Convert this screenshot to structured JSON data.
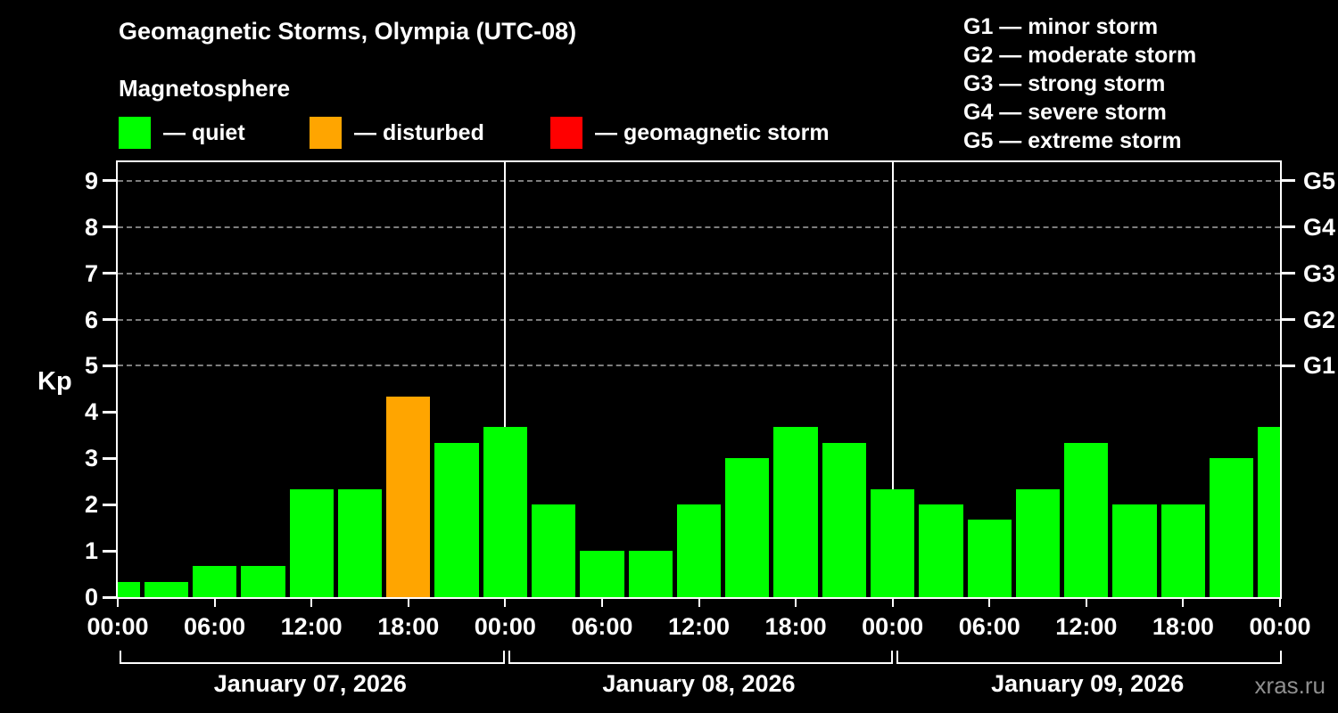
{
  "header": {
    "title": "Geomagnetic Storms, Olympia (UTC-08)",
    "subtitle": "Magnetosphere"
  },
  "legend": {
    "items": [
      {
        "label": "— quiet",
        "color": "#00ff00"
      },
      {
        "label": "— disturbed",
        "color": "#ffa500"
      },
      {
        "label": "— geomagnetic storm",
        "color": "#ff0000"
      }
    ]
  },
  "g_legend": {
    "items": [
      "G1 — minor storm",
      "G2 — moderate storm",
      "G3 — strong storm",
      "G4 — severe storm",
      "G5 — extreme storm"
    ]
  },
  "colors": {
    "quiet": "#00ff00",
    "disturbed": "#ffa500",
    "storm": "#ff0000",
    "background": "#000000",
    "text": "#ffffff",
    "grid": "#7d7d7d",
    "watermark": "#8f8f8f"
  },
  "footer": {
    "watermark": "xras.ru"
  },
  "chart_data": {
    "type": "bar",
    "title": "Geomagnetic Storms, Olympia (UTC-08)",
    "subtitle": "Magnetosphere",
    "ylabel": "Kp",
    "ylim": [
      0,
      9.4
    ],
    "yticks": [
      0,
      1,
      2,
      3,
      4,
      5,
      6,
      7,
      8,
      9
    ],
    "grid_dashed_at": [
      5,
      6,
      7,
      8,
      9
    ],
    "right_axis": [
      {
        "label": "G1",
        "value": 5
      },
      {
        "label": "G2",
        "value": 6
      },
      {
        "label": "G3",
        "value": 7
      },
      {
        "label": "G4",
        "value": 8
      },
      {
        "label": "G5",
        "value": 9
      }
    ],
    "x_tick_labels": [
      "00:00",
      "06:00",
      "12:00",
      "18:00",
      "00:00",
      "06:00",
      "12:00",
      "18:00",
      "00:00",
      "06:00",
      "12:00",
      "18:00",
      "00:00"
    ],
    "day_labels": [
      "January 07, 2026",
      "January 08, 2026",
      "January 09, 2026"
    ],
    "interval_hours": 3,
    "thresholds": {
      "disturbed_min": 4,
      "storm_min": 5
    },
    "values": [
      0.33,
      0.33,
      0.67,
      0.67,
      2.33,
      2.33,
      4.33,
      3.33,
      3.67,
      2.0,
      1.0,
      1.0,
      2.0,
      3.0,
      3.67,
      3.33,
      2.33,
      2.0,
      1.67,
      2.33,
      3.33,
      2.0,
      2.0,
      3.0,
      3.67
    ],
    "legend_position": "top",
    "grid": "dashed horizontal at G-levels only"
  }
}
